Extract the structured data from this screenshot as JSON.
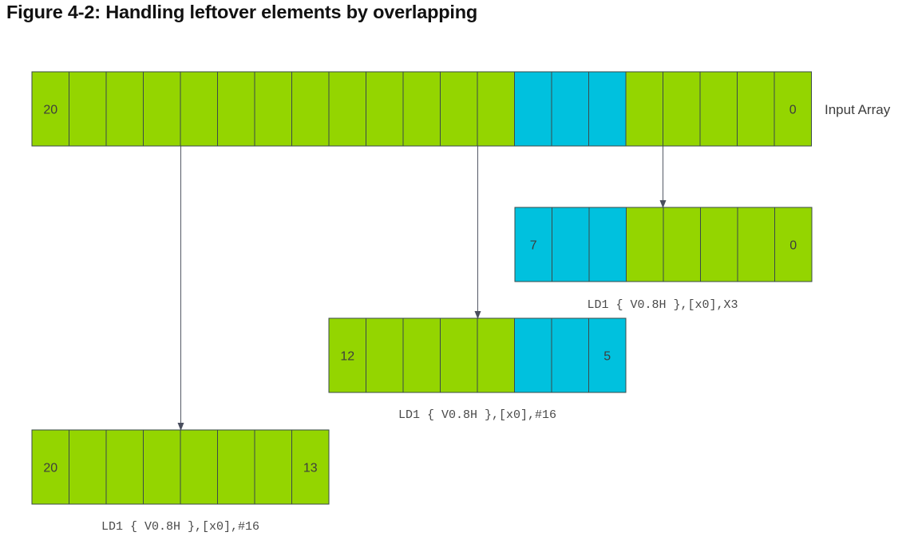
{
  "figure": {
    "title": "Figure 4-2: Handling leftover elements by overlapping"
  },
  "colors": {
    "green": "#94d500",
    "cyan": "#00c1de",
    "border": "#3a4a4a",
    "arrow": "#555a66"
  },
  "input_array": {
    "label": "Input Array",
    "cells": [
      "green",
      "green",
      "green",
      "green",
      "green",
      "green",
      "green",
      "green",
      "green",
      "green",
      "green",
      "green",
      "green",
      "cyan",
      "cyan",
      "cyan",
      "green",
      "green",
      "green",
      "green",
      "green"
    ],
    "first_label": "20",
    "last_label": "0"
  },
  "loads": [
    {
      "id": "load-x3",
      "instruction": "LD1 { V0.8H },[x0],X3",
      "cells": [
        "cyan",
        "cyan",
        "cyan",
        "green",
        "green",
        "green",
        "green",
        "green"
      ],
      "first_label": "7",
      "last_label": "0"
    },
    {
      "id": "load-mid",
      "instruction": "LD1 { V0.8H },[x0],#16",
      "cells": [
        "green",
        "green",
        "green",
        "green",
        "green",
        "cyan",
        "cyan",
        "cyan"
      ],
      "first_label": "12",
      "last_label": "5"
    },
    {
      "id": "load-first",
      "instruction": "LD1 { V0.8H },[x0],#16",
      "cells": [
        "green",
        "green",
        "green",
        "green",
        "green",
        "green",
        "green",
        "green"
      ],
      "first_label": "20",
      "last_label": "13"
    }
  ]
}
